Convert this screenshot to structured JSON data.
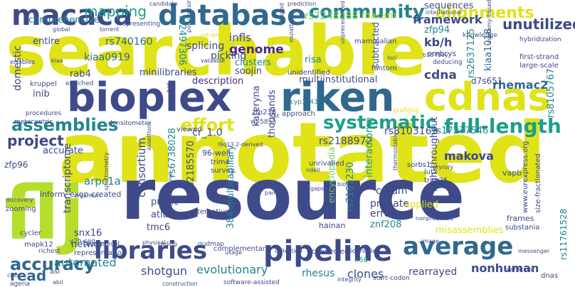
{
  "wordcloud": {
    "colors": {
      "background": "#ffffff",
      "yellow": "#dfe318",
      "lime": "#b5de2b",
      "green": "#6ece58",
      "teal": "#1f9e89",
      "teal2": "#25848e",
      "blue": "#31688e",
      "indigo": "#3e4a89",
      "purple": "#472d7b",
      "darkpurple": "#440154"
    },
    "words": [
      {
        "text": "searchable",
        "color": "#dfe318"
      },
      {
        "text": "annotated",
        "color": "#dfe318"
      },
      {
        "text": "resource",
        "color": "#3e4a89"
      },
      {
        "text": "flj",
        "color": "#b5de2b"
      },
      {
        "text": "bioplex",
        "color": "#3e4a89"
      },
      {
        "text": "riken",
        "color": "#31688e"
      },
      {
        "text": "cdnas",
        "color": "#dfe318"
      },
      {
        "text": "database",
        "color": "#31688e"
      },
      {
        "text": "macaca",
        "color": "#3e4a89"
      },
      {
        "text": "libraries",
        "color": "#3e4a89"
      },
      {
        "text": "pipeline",
        "color": "#3e4a89"
      },
      {
        "text": "average",
        "color": "#31688e"
      },
      {
        "text": "community",
        "color": "#25848e"
      },
      {
        "text": "full-length",
        "color": "#1f9e89"
      },
      {
        "text": "assemblies",
        "color": "#25848e"
      },
      {
        "text": "systematic",
        "color": "#1f9e89"
      },
      {
        "text": "effort",
        "color": "#dfe318"
      },
      {
        "text": "project",
        "color": "#3e4a89"
      },
      {
        "text": "accuracy",
        "color": "#31688e"
      },
      {
        "text": "read",
        "color": "#31688e"
      },
      {
        "text": "mapping",
        "color": "#1f9e89"
      },
      {
        "text": "alignments",
        "color": "#dfe318"
      },
      {
        "text": "unutilized",
        "color": "#3e4a89"
      },
      {
        "text": "framework",
        "color": "#3e4a89"
      },
      {
        "text": "rs7248488",
        "color": "#6ece58"
      },
      {
        "text": "macam",
        "color": "#b5de2b"
      },
      {
        "text": "comprehensive",
        "color": "#25848e"
      },
      {
        "text": "sequences",
        "color": "#3e4a89"
      },
      {
        "text": "zfp94",
        "color": "#25848e"
      },
      {
        "text": "kb/h",
        "color": "#3e4a89"
      },
      {
        "text": "rs740160",
        "color": "#31688e"
      },
      {
        "text": "rs2497306",
        "color": "#25848e"
      },
      {
        "text": "infls",
        "color": "#3e4a89"
      },
      {
        "text": "genome",
        "color": "#472d7b"
      },
      {
        "text": "entire",
        "color": "#3e4a89"
      },
      {
        "text": "domestic",
        "color": "#3e4a89"
      },
      {
        "text": "kiaa0919",
        "color": "#31688e"
      },
      {
        "text": "splicing",
        "color": "#3e4a89"
      },
      {
        "text": "picking",
        "color": "#3e4a89"
      },
      {
        "text": "clusters",
        "color": "#25848e"
      },
      {
        "text": "kiaa1018",
        "color": "#31688e"
      },
      {
        "text": "rs2637125",
        "color": "#25848e"
      },
      {
        "text": "cdna",
        "color": "#3e4a89"
      },
      {
        "text": "risa",
        "color": "#25848e"
      },
      {
        "text": "mammalian",
        "color": "#3e4a89"
      },
      {
        "text": "embrys",
        "color": "#3e4a89"
      },
      {
        "text": "soojin",
        "color": "#3e4a89"
      },
      {
        "text": "subtracted",
        "color": "#3e4a89"
      },
      {
        "text": "rab4",
        "color": "#3e4a89"
      },
      {
        "text": "minilibraries",
        "color": "#3e4a89"
      },
      {
        "text": "description",
        "color": "#472d7b"
      },
      {
        "text": "multiinstitutional",
        "color": "#3e4a89"
      },
      {
        "text": "rhemac2",
        "color": "#31688e"
      },
      {
        "text": "d7s651",
        "color": "#3e4a89"
      },
      {
        "text": "rs8105767",
        "color": "#25848e"
      },
      {
        "text": "inib",
        "color": "#3e4a89"
      },
      {
        "text": "thousands",
        "color": "#3e4a89"
      },
      {
        "text": "kateryna",
        "color": "#3e4a89"
      },
      {
        "text": "rs2188972",
        "color": "#3e4a89"
      },
      {
        "text": "rs8103163",
        "color": "#3e4a89"
      },
      {
        "text": "rs17277546",
        "color": "#25848e"
      },
      {
        "text": "cr_1.0",
        "color": "#3e4a89"
      },
      {
        "text": "accurate",
        "color": "#3e4a89"
      },
      {
        "text": "rs6738028",
        "color": "#25848e"
      },
      {
        "text": "rs2185570",
        "color": "#3e4a89"
      },
      {
        "text": "consortium",
        "color": "#3e4a89"
      },
      {
        "text": "transcriptome",
        "color": "#3e4a89"
      },
      {
        "text": "encyclopedia",
        "color": "#6ece58"
      },
      {
        "text": "interactome",
        "color": "#1f9e89"
      },
      {
        "text": "high-throughput",
        "color": "#3e4a89"
      },
      {
        "text": "makova",
        "color": "#3e4a89"
      },
      {
        "text": "zfp96",
        "color": "#3e4a89"
      },
      {
        "text": "arpc1a",
        "color": "#25848e"
      },
      {
        "text": "384-multicapillary",
        "color": "#25848e"
      },
      {
        "text": "96-well",
        "color": "#3e4a89"
      },
      {
        "text": "trim4",
        "color": "#3e4a89"
      },
      {
        "text": "survey",
        "color": "#3e4a89"
      },
      {
        "text": "unrivalled",
        "color": "#3e4a89"
      },
      {
        "text": "sorbs1",
        "color": "#3e4a89"
      },
      {
        "text": "lutz",
        "color": "#3e4a89"
      },
      {
        "text": "trim25",
        "color": "#3e4a89"
      },
      {
        "text": "vapb",
        "color": "#3e4a89"
      },
      {
        "text": "www.eurexpress.org",
        "color": "#3e4a89"
      },
      {
        "text": "size-fractionated",
        "color": "#3e4a89"
      },
      {
        "text": "inform",
        "color": "#3e4a89"
      },
      {
        "text": "exon-created",
        "color": "#3e4a89"
      },
      {
        "text": "corum",
        "color": "#3e4a89"
      },
      {
        "text": "primate",
        "color": "#3e4a89"
      },
      {
        "text": "errors",
        "color": "#3e4a89"
      },
      {
        "text": "applied",
        "color": "#dfe318"
      },
      {
        "text": "public",
        "color": "#3e4a89"
      },
      {
        "text": "atlas",
        "color": "#3e4a89"
      },
      {
        "text": "tmc6",
        "color": "#3e4a89"
      },
      {
        "text": "alternative",
        "color": "#3e4a89"
      },
      {
        "text": "rs7181230",
        "color": "#25848e"
      },
      {
        "text": "znf208",
        "color": "#25848e"
      },
      {
        "text": "misassemblies",
        "color": "#dfe318"
      },
      {
        "text": "hainan",
        "color": "#3e4a89"
      },
      {
        "text": "frames",
        "color": "#3e4a89"
      },
      {
        "text": "substania",
        "color": "#3e4a89"
      },
      {
        "text": "rs11761528",
        "color": "#25848e"
      },
      {
        "text": "snx16",
        "color": "#3e4a89"
      },
      {
        "text": "network",
        "color": "#3e4a89"
      },
      {
        "text": "representation",
        "color": "#3e4a89"
      },
      {
        "text": "automated",
        "color": "#25848e"
      },
      {
        "text": "shotgun",
        "color": "#3e4a89"
      },
      {
        "text": "evolutionary",
        "color": "#25848e"
      },
      {
        "text": "rhesus",
        "color": "#25848e"
      },
      {
        "text": "clones",
        "color": "#3e4a89"
      },
      {
        "text": "rearrayed",
        "color": "#3e4a89"
      },
      {
        "text": "nonhuman",
        "color": "#3e4a89"
      },
      {
        "text": "gudmap",
        "color": "#3e4a89"
      },
      {
        "text": "complementary",
        "color": "#3e4a89"
      },
      {
        "text": "connected",
        "color": "#3e4a89"
      },
      {
        "text": "identified",
        "color": "#3e4a89"
      },
      {
        "text": "n50",
        "color": "#1f9e89"
      },
      {
        "text": "software-assisted",
        "color": "#3e4a89"
      },
      {
        "text": "start-codon",
        "color": "#3e4a89"
      },
      {
        "text": "dnas",
        "color": "#3e4a89"
      },
      {
        "text": "agena",
        "color": "#3e4a89"
      },
      {
        "text": "asl",
        "color": "#3e4a89"
      },
      {
        "text": "zooming",
        "color": "#3e4a89"
      },
      {
        "text": "mapk12",
        "color": "#3e4a89"
      },
      {
        "text": "richest",
        "color": "#3e4a89"
      },
      {
        "text": "anatomical",
        "color": "#3e4a89"
      },
      {
        "text": "cycler",
        "color": "#3e4a89"
      },
      {
        "text": "y2h-seq",
        "color": "#3e4a89"
      },
      {
        "text": "enables",
        "color": "#3e4a89"
      },
      {
        "text": "kruppel",
        "color": "#3e4a89"
      },
      {
        "text": "enriched",
        "color": "#3e4a89"
      },
      {
        "text": "procedures",
        "color": "#3e4a89"
      },
      {
        "text": "metacentric",
        "color": "#3e4a89"
      },
      {
        "text": "densitometer",
        "color": "#3e4a89"
      },
      {
        "text": "viewed",
        "color": "#3e4a89"
      },
      {
        "text": "wi-5853",
        "color": "#3e4a89"
      },
      {
        "text": "zfp238",
        "color": "#3e4a89"
      },
      {
        "text": "approach",
        "color": "#3e4a89"
      },
      {
        "text": "profiling",
        "color": "#dfe318"
      },
      {
        "text": "fantom",
        "color": "#3e4a89"
      },
      {
        "text": "unidentified",
        "color": "#3e4a89"
      },
      {
        "text": "cyp3a43",
        "color": "#25848e"
      },
      {
        "text": "first-strand",
        "color": "#3e4a89"
      },
      {
        "text": "large-scale",
        "color": "#3e4a89"
      },
      {
        "text": "deducing",
        "color": "#3e4a89"
      },
      {
        "text": "knowledge",
        "color": "#3e4a89"
      },
      {
        "text": "hybridization",
        "color": "#3e4a89"
      },
      {
        "text": "international",
        "color": "#3e4a89"
      },
      {
        "text": "candidate",
        "color": "#3e4a89"
      },
      {
        "text": "prediction",
        "color": "#3e4a89"
      },
      {
        "text": "polling",
        "color": "#3e4a89"
      },
      {
        "text": "representing",
        "color": "#3e4a89"
      },
      {
        "text": "global",
        "color": "#3e4a89"
      },
      {
        "text": "valuable",
        "color": "#3e4a89"
      },
      {
        "text": "nd-related",
        "color": "#dfe318"
      },
      {
        "text": "pop-containing",
        "color": "#3e4a89"
      },
      {
        "text": "anatomy-based",
        "color": "#3e4a89"
      },
      {
        "text": "loci",
        "color": "#3e4a89"
      },
      {
        "text": "b16-f10y",
        "color": "#3e4a89"
      },
      {
        "text": "organism",
        "color": "#3e4a89"
      },
      {
        "text": "spectrometry",
        "color": "#3e4a89"
      },
      {
        "text": "computational",
        "color": "#3e4a89"
      },
      {
        "text": "discovery",
        "color": "#3e4a89"
      },
      {
        "text": "bioscience",
        "color": "#3e4a89"
      },
      {
        "text": "thermostable",
        "color": "#3e4a89"
      },
      {
        "text": "nonpredicted",
        "color": "#3e4a89"
      },
      {
        "text": "gaps",
        "color": "#3e4a89"
      },
      {
        "text": "pairs",
        "color": "#3e4a89"
      },
      {
        "text": "zap",
        "color": "#3e4a89"
      },
      {
        "text": "ndell",
        "color": "#3e4a89"
      },
      {
        "text": "pryrory",
        "color": "#3e4a89"
      },
      {
        "text": "physical",
        "color": "#3e4a89"
      },
      {
        "text": "usage",
        "color": "#3e4a89"
      },
      {
        "text": "coding",
        "color": "#3e4a89"
      },
      {
        "text": "collection",
        "color": "#3e4a89"
      },
      {
        "text": "integrity",
        "color": "#3e4a89"
      },
      {
        "text": "image",
        "color": "#3e4a89"
      },
      {
        "text": "messenger",
        "color": "#3e4a89"
      },
      {
        "text": "variation",
        "color": "#3e4a89"
      },
      {
        "text": "construction",
        "color": "#3e4a89"
      },
      {
        "text": "assertions",
        "color": "#3e4a89"
      },
      {
        "text": "torrent",
        "color": "#3e4a89"
      },
      {
        "text": "mulatta",
        "color": "#3e4a89"
      },
      {
        "text": "unprecedented",
        "color": "#3e4a89"
      },
      {
        "text": "l9q13.2-derived",
        "color": "#3e4a89"
      },
      {
        "text": "cdss",
        "color": "#3e4a89"
      },
      {
        "text": "abil",
        "color": "#3e4a89"
      },
      {
        "text": "brd",
        "color": "#3e4a89"
      },
      {
        "text": "set",
        "color": "#3e4a89"
      },
      {
        "text": "kiaa",
        "color": "#3e4a89"
      }
    ]
  }
}
